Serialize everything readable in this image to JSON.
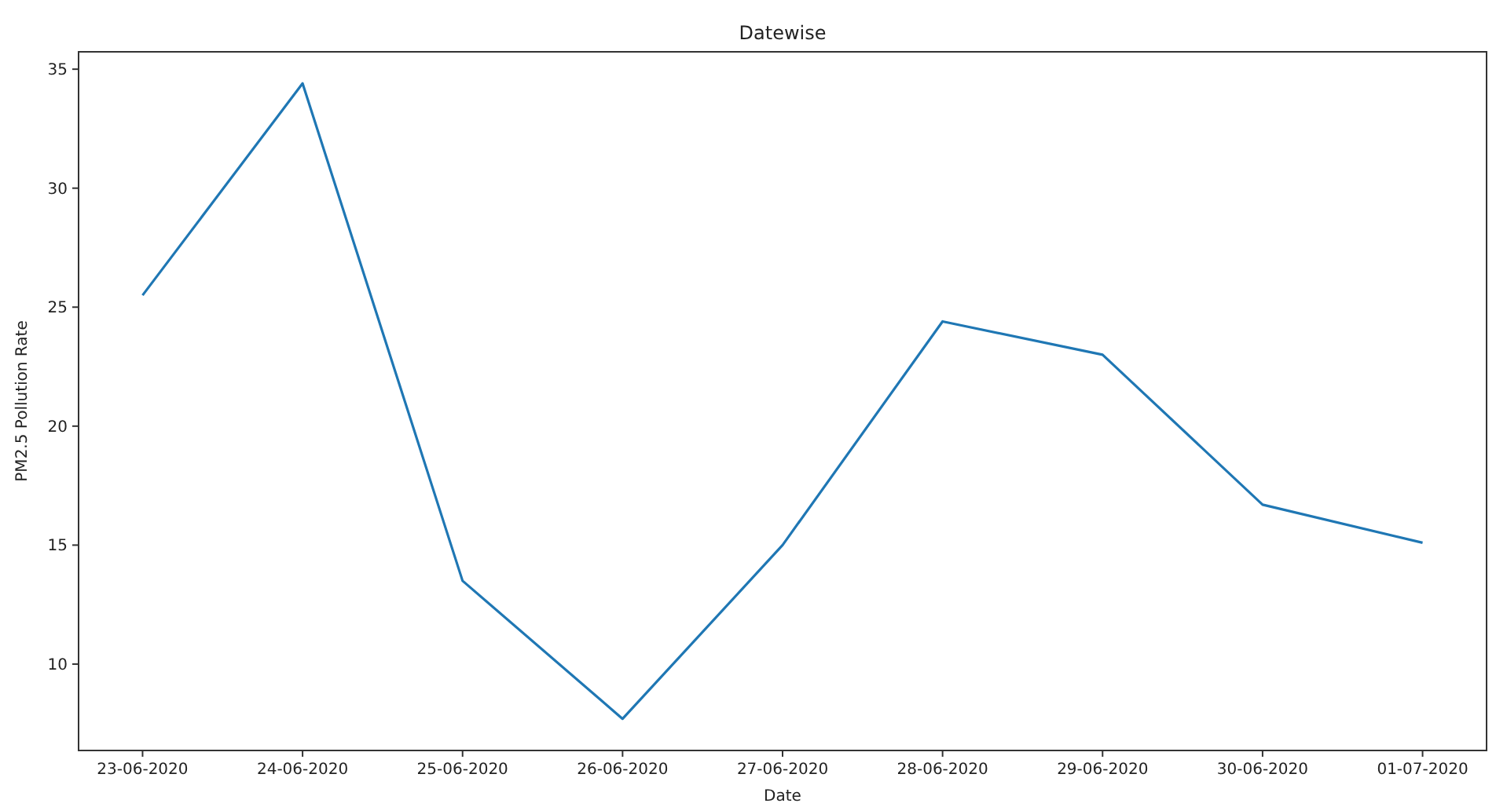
{
  "chart_data": {
    "type": "line",
    "title": "Datewise",
    "xlabel": "Date",
    "ylabel": "PM2.5 Pollution Rate",
    "categories": [
      "23-06-2020",
      "24-06-2020",
      "25-06-2020",
      "26-06-2020",
      "27-06-2020",
      "28-06-2020",
      "29-06-2020",
      "30-06-2020",
      "01-07-2020"
    ],
    "series": [
      {
        "color": "#1f77b4",
        "values": [
          25.5,
          34.4,
          13.5,
          7.7,
          15.0,
          24.4,
          23.0,
          16.7,
          15.1
        ]
      }
    ],
    "ylim": [
      6.37,
      35.73
    ],
    "yticks": [
      10,
      15,
      20,
      25,
      30,
      35
    ],
    "grid": false,
    "marker": "none",
    "line_style": "solid"
  }
}
